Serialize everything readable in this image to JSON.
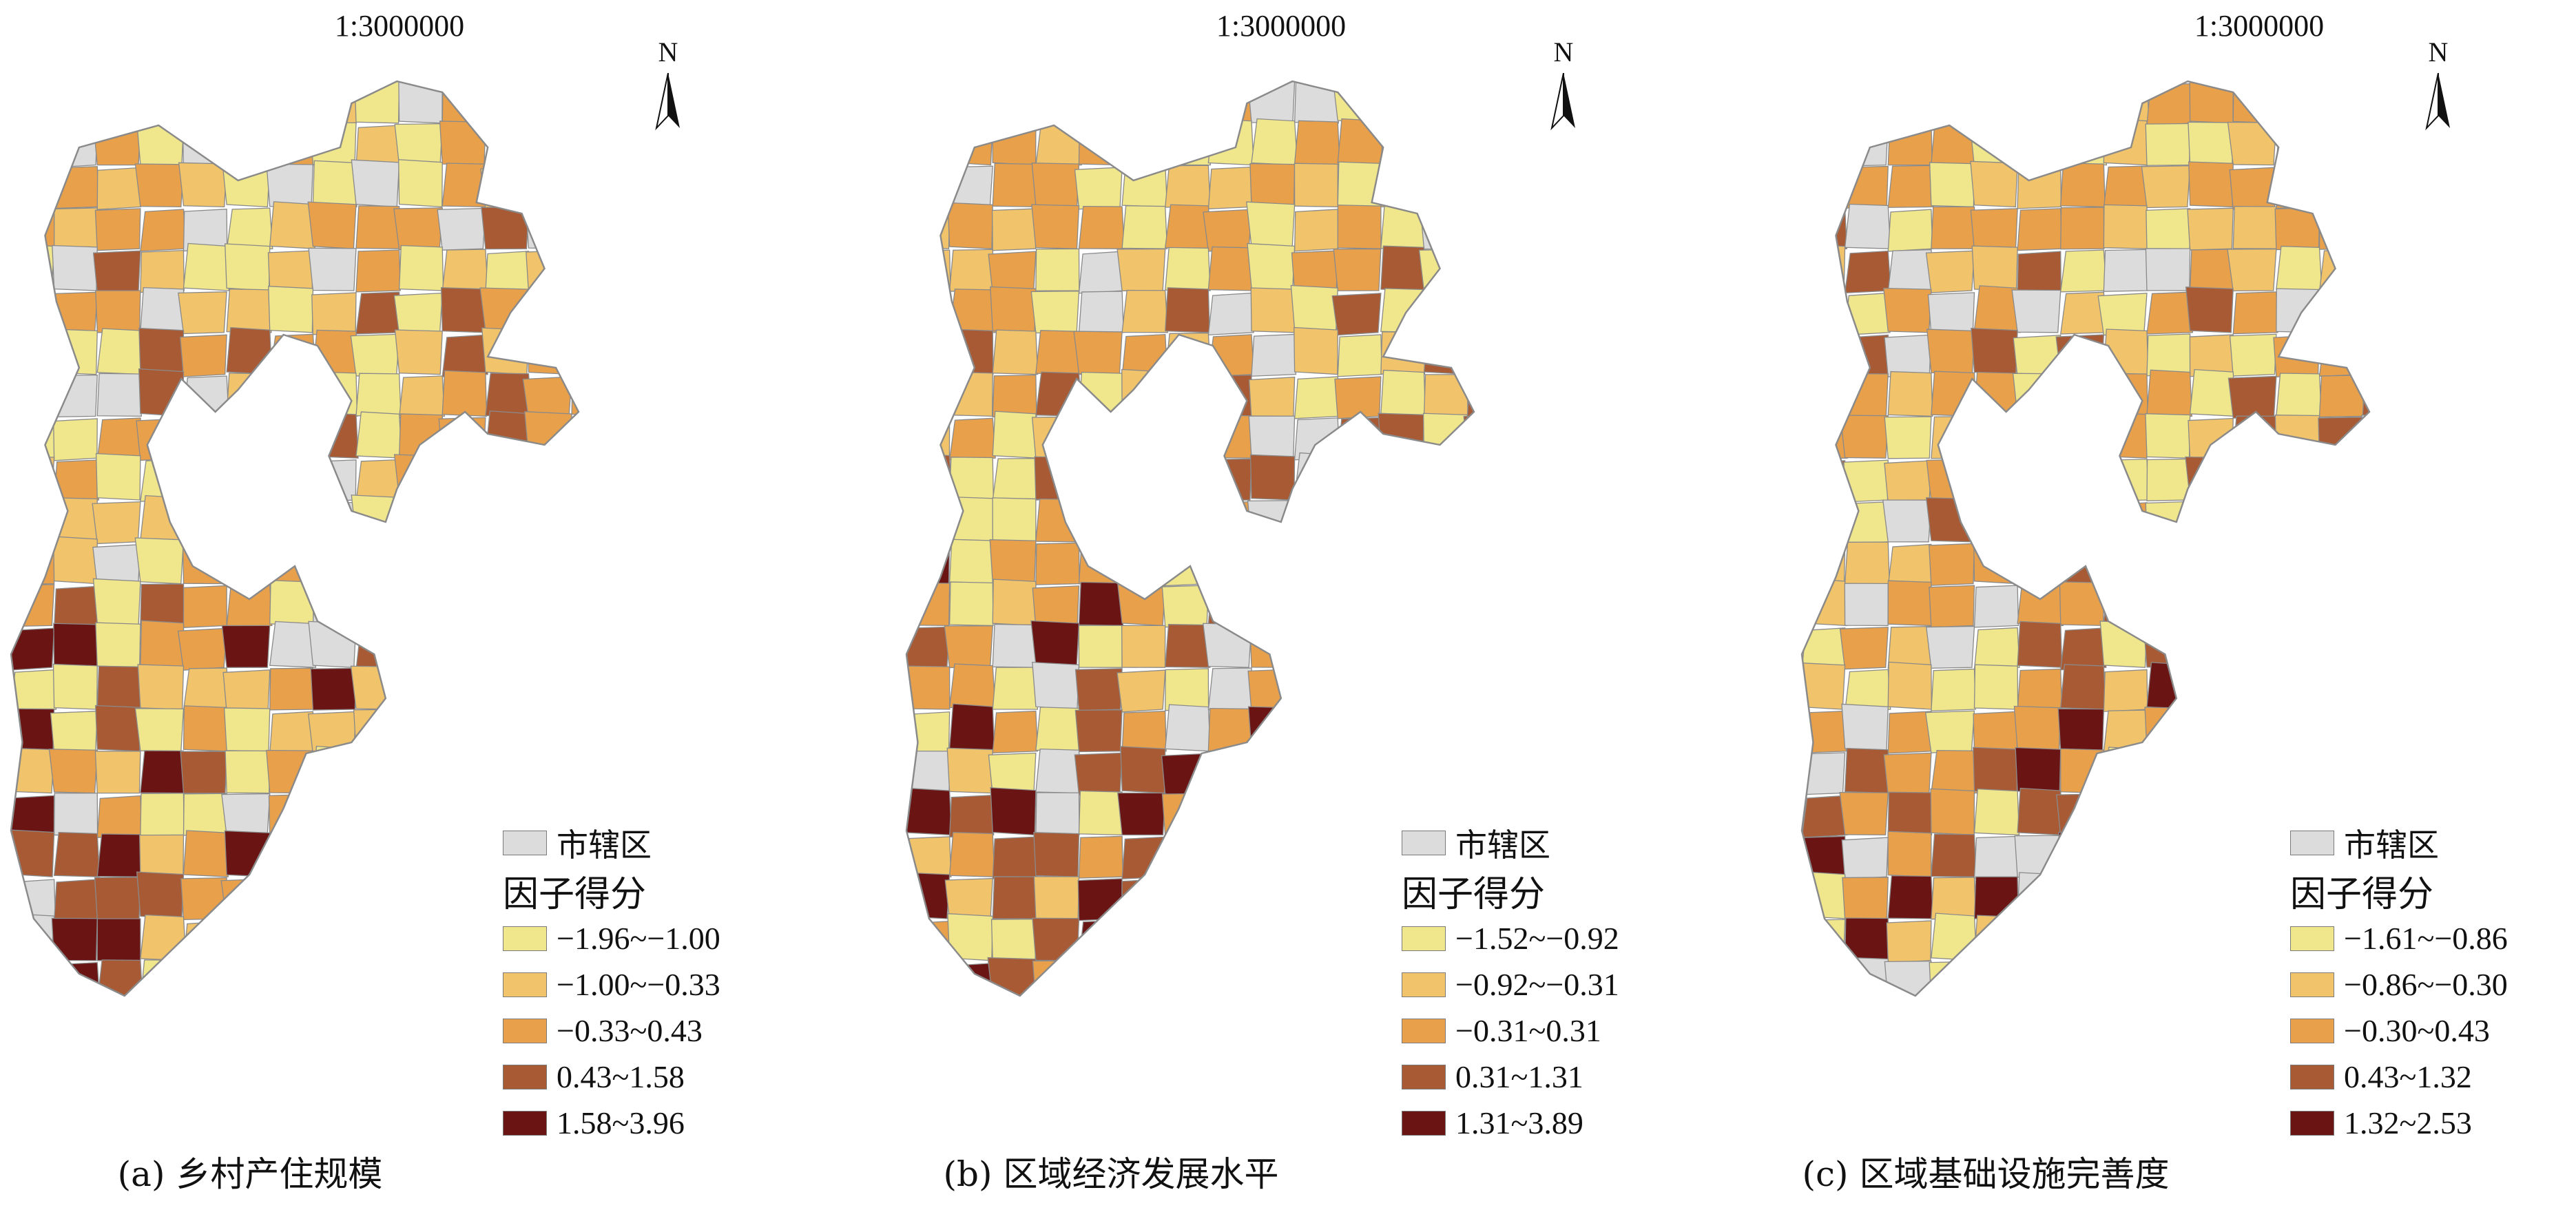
{
  "panels": [
    {
      "scale": "1:3000000",
      "north": "N",
      "caption": "(a) 乡村产住规模",
      "legend": {
        "urban_label": "市辖区",
        "title": "因子得分",
        "classes": [
          {
            "label": "−1.96~−1.00",
            "color": "#f0e68c"
          },
          {
            "label": "−1.00~−0.33",
            "color": "#f1c36a"
          },
          {
            "label": "−0.33~0.43",
            "color": "#e9a04a"
          },
          {
            "label": "0.43~1.58",
            "color": "#a85a35"
          },
          {
            "label": "1.58~3.96",
            "color": "#6b1414"
          }
        ]
      }
    },
    {
      "scale": "1:3000000",
      "north": "N",
      "caption": "(b) 区域经济发展水平",
      "legend": {
        "urban_label": "市辖区",
        "title": "因子得分",
        "classes": [
          {
            "label": "−1.52~−0.92",
            "color": "#f0e68c"
          },
          {
            "label": "−0.92~−0.31",
            "color": "#f1c36a"
          },
          {
            "label": "−0.31~0.31",
            "color": "#e9a04a"
          },
          {
            "label": "0.31~1.31",
            "color": "#a85a35"
          },
          {
            "label": "1.31~3.89",
            "color": "#6b1414"
          }
        ]
      }
    },
    {
      "scale": "1:3000000",
      "north": "N",
      "caption": "(c) 区域基础设施完善度",
      "legend": {
        "urban_label": "市辖区",
        "title": "因子得分",
        "classes": [
          {
            "label": "−1.61~−0.86",
            "color": "#f0e68c"
          },
          {
            "label": "−0.86~−0.30",
            "color": "#f1c36a"
          },
          {
            "label": "−0.30~0.43",
            "color": "#e9a04a"
          },
          {
            "label": "0.43~1.32",
            "color": "#a85a35"
          },
          {
            "label": "1.32~2.53",
            "color": "#6b1414"
          }
        ]
      }
    }
  ],
  "colors": {
    "urban": "#dcdcdc",
    "border": "#8a8a8a"
  }
}
